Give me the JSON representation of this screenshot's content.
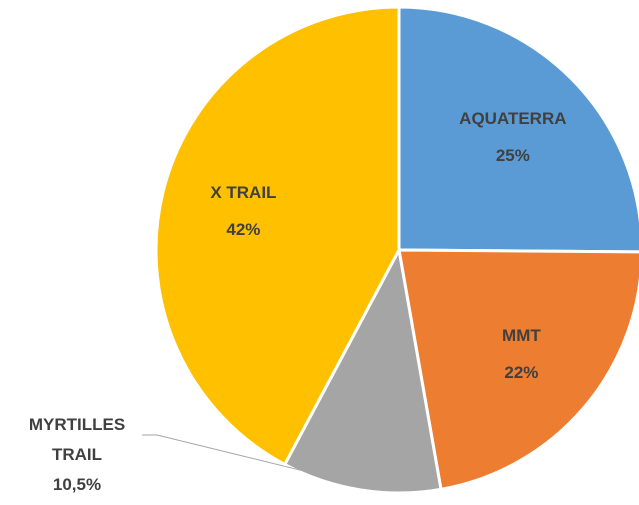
{
  "chart_data": {
    "type": "pie",
    "categories": [
      "AQUATERRA",
      "MMT",
      "MYRTILLES TRAIL",
      "X TRAIL"
    ],
    "values": [
      25,
      22,
      10.5,
      42
    ],
    "value_labels": [
      "25%",
      "22%",
      "10,5%",
      "42%"
    ],
    "colors": [
      "#5b9bd5",
      "#ed7d31",
      "#a5a5a5",
      "#ffc000"
    ]
  }
}
